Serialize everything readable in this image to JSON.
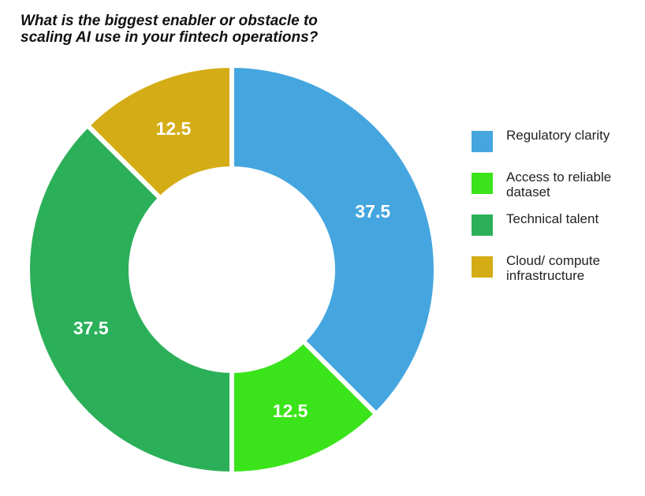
{
  "chart_data": {
    "type": "pie",
    "variant": "donut",
    "title": "What is the biggest enabler or obstacle to\nscaling AI use in your fintech operations?",
    "categories": [
      "Regulatory clarity",
      "Access to reliable dataset",
      "Technical talent",
      "Cloud/ compute infrastructure"
    ],
    "values": [
      37.5,
      12.5,
      37.5,
      12.5
    ],
    "value_labels": [
      "37.5",
      "12.5",
      "37.5",
      "12.5"
    ],
    "colors": [
      "#45a6df",
      "#3be41a",
      "#2bb059",
      "#d4ad16"
    ],
    "label_color": "#ffffff",
    "start_angle_deg": 90,
    "direction": "clockwise",
    "legend_position": "right"
  }
}
